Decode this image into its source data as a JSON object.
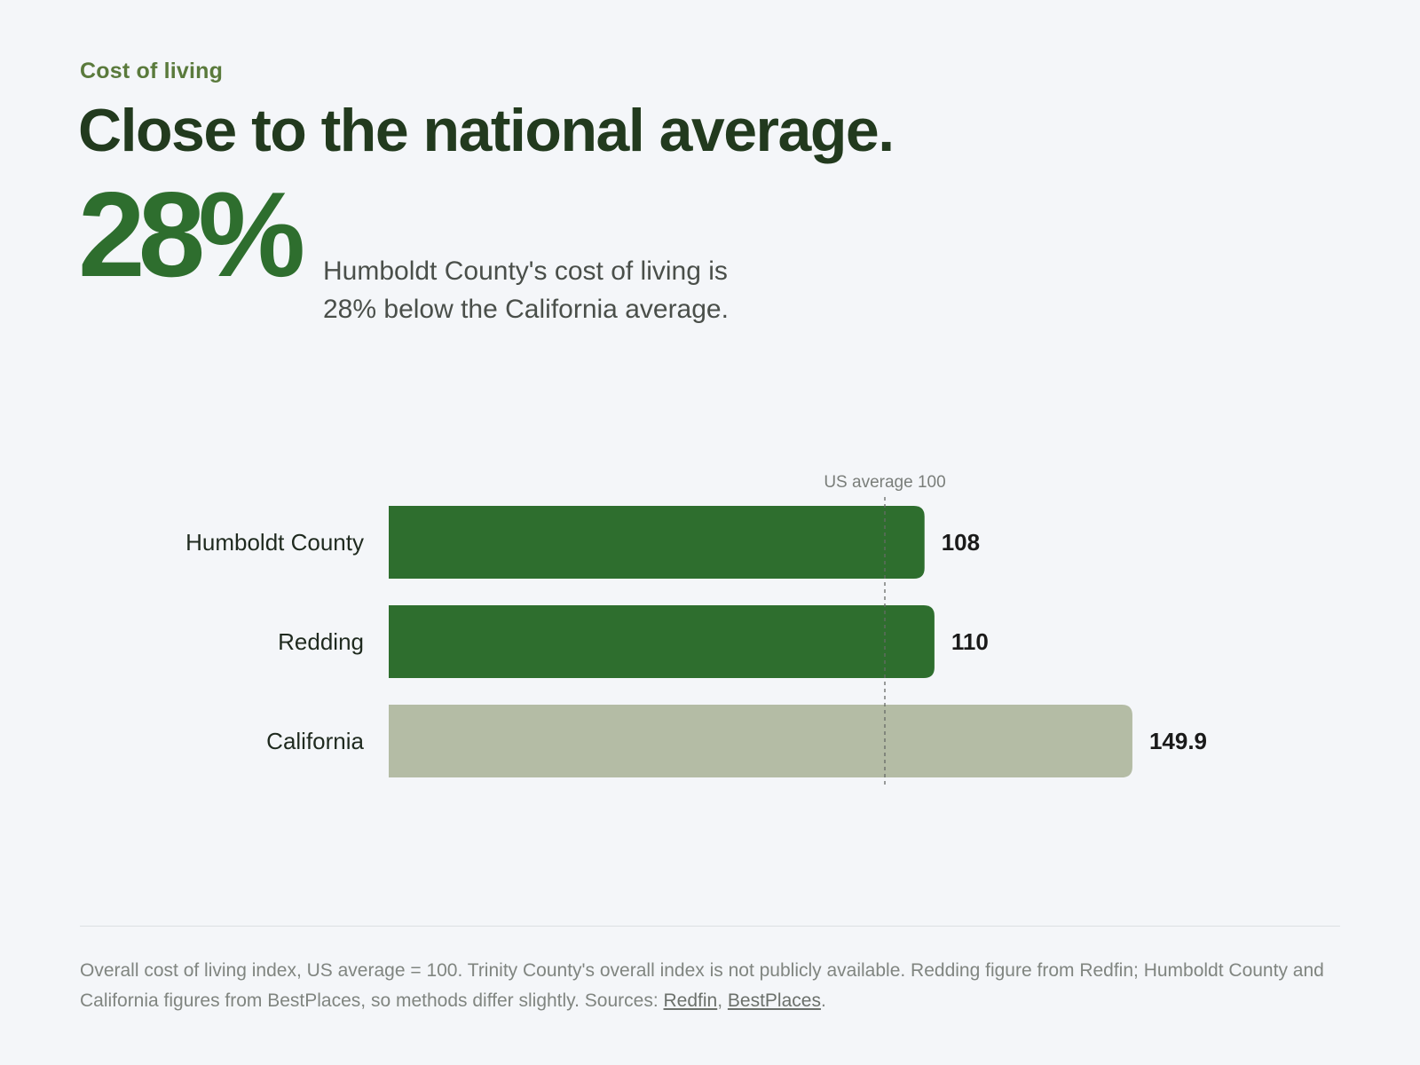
{
  "header": {
    "eyebrow": "Cost of living",
    "headline": "Close to the national average.",
    "stat_value": "28%",
    "stat_text": "Humboldt County's cost of living is 28% below the California average."
  },
  "chart_data": {
    "type": "bar",
    "orientation": "horizontal",
    "categories": [
      "Humboldt County",
      "Redding",
      "California"
    ],
    "values": [
      108,
      110,
      149.9
    ],
    "value_labels": [
      "108",
      "110",
      "149.9"
    ],
    "colors": [
      "#2e6e2e",
      "#2e6e2e",
      "#b4bca5"
    ],
    "reference_line": {
      "value": 100,
      "label": "US average 100"
    },
    "xlim": [
      0,
      150
    ],
    "grid": false,
    "legend": "none"
  },
  "footer": {
    "note": "Overall cost of living index, US average = 100. Trinity County's overall index is not publicly available. Redding figure from Redfin; Humboldt County and California figures from BestPlaces, so methods differ slightly. Sources:",
    "source_links": [
      "Redfin",
      "BestPlaces"
    ],
    "end": "."
  }
}
